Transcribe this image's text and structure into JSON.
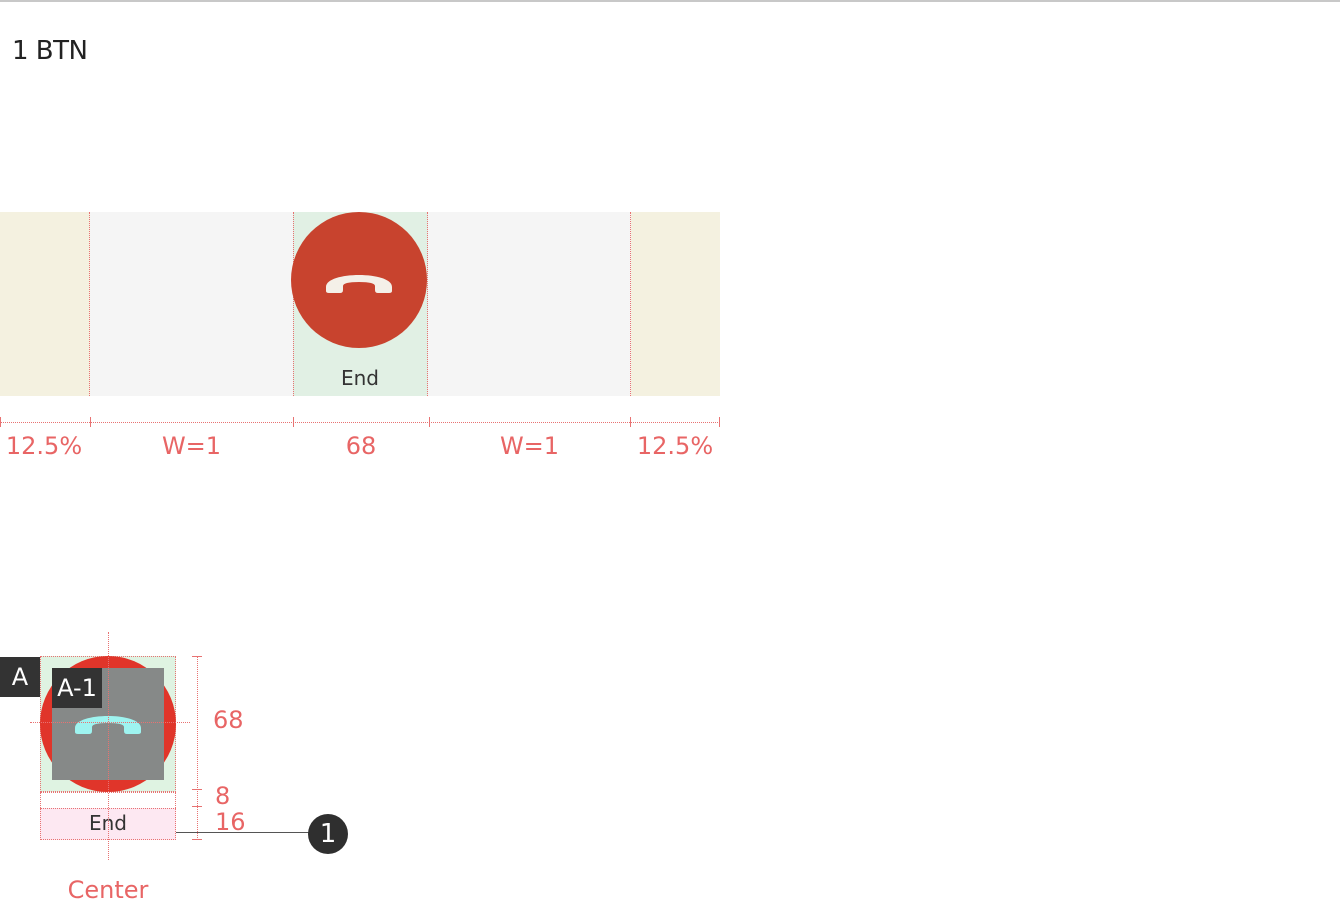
{
  "page_title": "1 BTN",
  "button": {
    "label": "End",
    "icon": "call-end-icon",
    "color": "#c8432e"
  },
  "measurements": {
    "left_margin": "12.5%",
    "left_space": "W=1",
    "button_width": "68",
    "right_space": "W=1",
    "right_margin": "12.5%"
  },
  "detail": {
    "badge_a": "A",
    "badge_a1": "A-1",
    "label": "End",
    "icon_height": "68",
    "gap": "8",
    "text_height": "16",
    "alignment": "Center",
    "callout_number": "1"
  },
  "colors": {
    "accent": "#e86565",
    "margin_zone": "#f4f1e0",
    "button_zone": "#e1f0e4",
    "icon_fill": "#f4f0e8"
  }
}
